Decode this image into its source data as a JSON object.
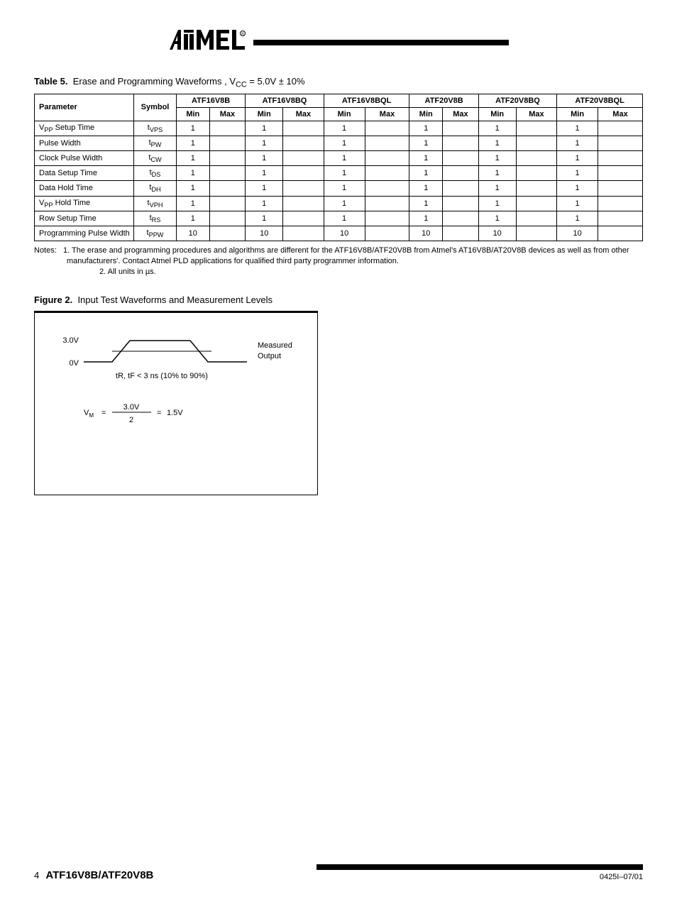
{
  "table": {
    "number": "Table 5.",
    "title": "Erase and Programming Waveforms",
    "vcc_note": "V<sub>CC</sub> = 5.0V ± 10%",
    "col_parameter": "Parameter",
    "col_symbol": "Symbol",
    "families": [
      "ATF16V8B",
      "ATF16V8BQ",
      "ATF16V8BQL",
      "ATF20V8B",
      "ATF20V8BQ",
      "ATF20V8BQL"
    ],
    "min": "Min",
    "max": "Max",
    "rows": [
      {
        "param": "V<sub>PP</sub> Setup Time",
        "sym": "t<sub>VPS</sub>",
        "vals": [
          "1",
          "",
          "1",
          "",
          "1",
          "",
          "1",
          "",
          "1",
          "",
          "1",
          ""
        ]
      },
      {
        "param": "Pulse Width",
        "sym": "t<sub>PW</sub>",
        "vals": [
          "1",
          "",
          "1",
          "",
          "1",
          "",
          "1",
          "",
          "1",
          "",
          "1",
          ""
        ]
      },
      {
        "param": "Clock Pulse Width",
        "sym": "t<sub>CW</sub>",
        "vals": [
          "1",
          "",
          "1",
          "",
          "1",
          "",
          "1",
          "",
          "1",
          "",
          "1",
          ""
        ]
      },
      {
        "param": "Data Setup Time",
        "sym": "t<sub>DS</sub>",
        "vals": [
          "1",
          "",
          "1",
          "",
          "1",
          "",
          "1",
          "",
          "1",
          "",
          "1",
          ""
        ]
      },
      {
        "param": "Data Hold Time",
        "sym": "t<sub>DH</sub>",
        "vals": [
          "1",
          "",
          "1",
          "",
          "1",
          "",
          "1",
          "",
          "1",
          "",
          "1",
          ""
        ]
      },
      {
        "param": "V<sub>PP</sub> Hold Time",
        "sym": "t<sub>VPH</sub>",
        "vals": [
          "1",
          "",
          "1",
          "",
          "1",
          "",
          "1",
          "",
          "1",
          "",
          "1",
          ""
        ]
      },
      {
        "param": "Row Setup Time",
        "sym": "t<sub>RS</sub>",
        "vals": [
          "1",
          "",
          "1",
          "",
          "1",
          "",
          "1",
          "",
          "1",
          "",
          "1",
          ""
        ]
      },
      {
        "param": "Programming Pulse Width",
        "sym": "t<sub>PPW</sub>",
        "vals": [
          "10",
          "",
          "10",
          "",
          "10",
          "",
          "10",
          "",
          "10",
          "",
          "10",
          ""
        ]
      }
    ]
  },
  "notes": {
    "label": "Notes:",
    "note1_num": "1.",
    "note1_text": "The erase and programming procedures and algorithms are different for the ATF16V8B/ATF20V8B from Atmel's AT16V8B/AT20V8B devices as well as from other manufacturers'. Contact Atmel PLD applications for qualified third party programmer information.",
    "note2_num": "2.",
    "note2_text": "All units in µs."
  },
  "figure": {
    "number": "Figure 2.",
    "title": "Input Test Waveforms and Measurement Levels",
    "vih_label": "3.0V",
    "vil_label": "0V",
    "rf_label": "t<sub>R</sub>, t<sub>F</sub> < 3 ns (10% to 90%)",
    "meas_label": "Measured",
    "out_label": "Output",
    "meas_eq_label": "V<sub>M</sub>",
    "meas_eq_rhs": "1.5V"
  },
  "footer": {
    "page": "4",
    "doc_left": "ATF16V8B/ATF20V8B",
    "doc_right": "0425I–07/01"
  }
}
